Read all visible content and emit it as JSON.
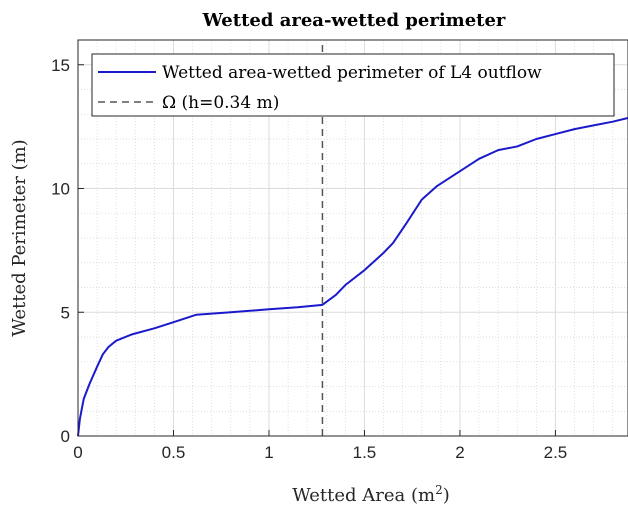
{
  "chart_data": {
    "type": "line",
    "title": "Wetted area-wetted perimeter",
    "xlabel": "Wetted Area (m",
    "xlabel_superscript": "2",
    "xlabel_suffix": ")",
    "ylabel": "Wetted Perimeter (m)",
    "xlim": [
      0,
      2.88
    ],
    "ylim": [
      0,
      16
    ],
    "xticks": [
      0,
      0.5,
      1,
      1.5,
      2,
      2.5
    ],
    "xtick_labels": [
      "0",
      "0.5",
      "1",
      "1.5",
      "2",
      "2.5"
    ],
    "yticks": [
      0,
      5,
      10,
      15
    ],
    "ytick_labels": [
      "0",
      "5",
      "10",
      "15"
    ],
    "grid": true,
    "minor_grid": true,
    "legend_position": "top",
    "series": [
      {
        "name": "Wetted area-wetted perimeter of L4 outflow",
        "color": "#1a1acc",
        "style": "solid",
        "x": [
          0,
          0.01,
          0.03,
          0.06,
          0.1,
          0.13,
          0.16,
          0.2,
          0.28,
          0.4,
          0.5,
          0.62,
          0.8,
          1.0,
          1.15,
          1.28,
          1.35,
          1.4,
          1.5,
          1.6,
          1.65,
          1.72,
          1.8,
          1.88,
          2.0,
          2.1,
          2.2,
          2.3,
          2.4,
          2.5,
          2.6,
          2.7,
          2.8,
          2.88
        ],
        "y": [
          0,
          0.7,
          1.5,
          2.1,
          2.8,
          3.3,
          3.6,
          3.85,
          4.1,
          4.35,
          4.6,
          4.9,
          5.0,
          5.12,
          5.2,
          5.3,
          5.7,
          6.1,
          6.7,
          7.4,
          7.8,
          8.6,
          9.55,
          10.1,
          10.7,
          11.2,
          11.55,
          11.7,
          12.0,
          12.2,
          12.4,
          12.55,
          12.7,
          12.85
        ]
      },
      {
        "name": "Ω (h=0.34 m)",
        "color": "#555555",
        "style": "dashed",
        "x": [
          1.28,
          1.28
        ],
        "y": [
          0,
          16
        ]
      }
    ]
  }
}
